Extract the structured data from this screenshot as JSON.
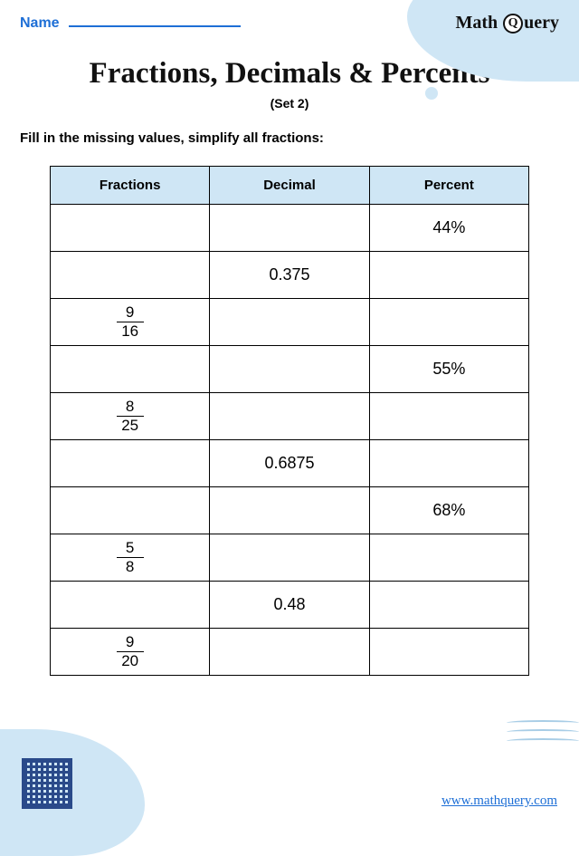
{
  "brand": {
    "part1": "Math ",
    "q": "Q",
    "part2": "uery"
  },
  "name_label": "Name",
  "title": "Fractions, Decimals & Percents",
  "subtitle": "(Set 2)",
  "instructions": "Fill in the missing values, simplify all fractions:",
  "table": {
    "columns": [
      "Fractions",
      "Decimal",
      "Percent"
    ],
    "header_bg": "#cfe6f5",
    "rows": [
      {
        "fraction": null,
        "decimal": "",
        "percent": "44%"
      },
      {
        "fraction": null,
        "decimal": "0.375",
        "percent": ""
      },
      {
        "fraction": {
          "num": "9",
          "den": "16"
        },
        "decimal": "",
        "percent": ""
      },
      {
        "fraction": null,
        "decimal": "",
        "percent": "55%"
      },
      {
        "fraction": {
          "num": "8",
          "den": "25"
        },
        "decimal": "",
        "percent": ""
      },
      {
        "fraction": null,
        "decimal": "0.6875",
        "percent": ""
      },
      {
        "fraction": null,
        "decimal": "",
        "percent": "68%"
      },
      {
        "fraction": {
          "num": "5",
          "den": "8"
        },
        "decimal": "",
        "percent": ""
      },
      {
        "fraction": null,
        "decimal": "0.48",
        "percent": ""
      },
      {
        "fraction": {
          "num": "9",
          "den": "20"
        },
        "decimal": "",
        "percent": ""
      }
    ]
  },
  "footer_url": "www.mathquery.com",
  "colors": {
    "accent_blue": "#1e6fd6",
    "decor_blue": "#cfe6f5",
    "text": "#111111"
  }
}
